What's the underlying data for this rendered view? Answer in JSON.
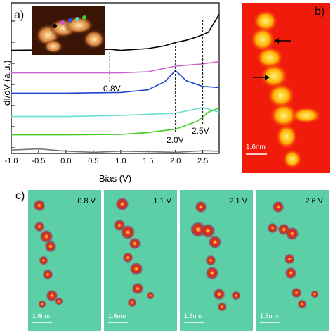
{
  "panel_a": {
    "label": "a)",
    "ylabel": "dI/dV (a.u.)",
    "xlabel": "Bias (V)",
    "xticks": [
      "-1.0",
      "-0.5",
      "0.0",
      "0.5",
      "1.0",
      "1.5",
      "2.0",
      "2.5"
    ],
    "annotations": [
      "0.8V",
      "2.0V",
      "2.5V"
    ],
    "curve_colors": [
      "#000000",
      "#cc66cc",
      "#2244cc",
      "#66e0d0",
      "#44cc22",
      "#777777"
    ]
  },
  "panel_b": {
    "label": "b)",
    "scalebar": "1.6nm"
  },
  "panel_c": {
    "label": "c)",
    "scalebar": "1.6nm",
    "frames": [
      {
        "bias": "0.8 V"
      },
      {
        "bias": "1.1 V"
      },
      {
        "bias": "2.1 V"
      },
      {
        "bias": "2.6 V"
      }
    ]
  },
  "chart_data": {
    "type": "line",
    "x_range": [
      -1.0,
      2.8
    ],
    "xlabel": "Bias (V)",
    "ylabel": "dI/dV (a.u.)",
    "series": [
      {
        "color": "#000000",
        "x": [
          -1.0,
          -0.5,
          0.0,
          0.5,
          0.8,
          1.0,
          1.5,
          1.8,
          2.0,
          2.2,
          2.4,
          2.6,
          2.8
        ],
        "y": [
          0.2,
          0.22,
          0.2,
          0.2,
          0.25,
          0.2,
          0.28,
          0.4,
          0.55,
          0.65,
          0.8,
          1.0,
          1.8
        ]
      },
      {
        "color": "#cc66cc",
        "x": [
          -1.0,
          -0.5,
          0.0,
          0.5,
          1.0,
          1.5,
          2.0,
          2.5,
          2.8
        ],
        "y": [
          0.2,
          0.2,
          0.2,
          0.2,
          0.2,
          0.25,
          0.5,
          0.6,
          0.7
        ]
      },
      {
        "color": "#2244cc",
        "x": [
          -1.0,
          0.0,
          1.0,
          1.5,
          1.8,
          2.0,
          2.2,
          2.5,
          2.8
        ],
        "y": [
          0.3,
          0.3,
          0.33,
          0.45,
          0.8,
          1.3,
          0.85,
          0.6,
          0.55
        ]
      },
      {
        "color": "#66e0d0",
        "x": [
          -1.0,
          0.0,
          1.0,
          1.5,
          2.0,
          2.5,
          2.8
        ],
        "y": [
          0.2,
          0.2,
          0.25,
          0.3,
          0.35,
          0.6,
          0.4
        ]
      },
      {
        "color": "#44cc22",
        "x": [
          -1.0,
          0.0,
          1.0,
          1.5,
          2.0,
          2.4,
          2.6,
          2.8
        ],
        "y": [
          0.2,
          0.2,
          0.22,
          0.3,
          0.45,
          0.8,
          1.2,
          1.4
        ]
      },
      {
        "color": "#777777",
        "x": [
          -1.0,
          -0.5,
          0.0,
          0.5,
          1.0,
          1.5,
          2.0,
          2.5,
          2.8
        ],
        "y": [
          0.15,
          0.2,
          0.1,
          0.05,
          0.1,
          0.08,
          0.05,
          0.12,
          0.1
        ]
      }
    ],
    "markers": [
      0.8,
      2.0,
      2.5
    ]
  }
}
